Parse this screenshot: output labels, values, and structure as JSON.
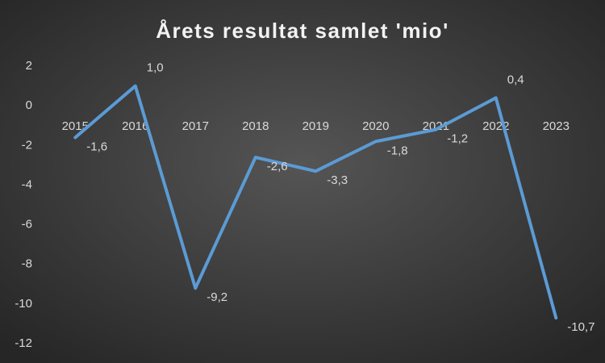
{
  "chart_data": {
    "type": "line",
    "title": "Årets resultat samlet 'mio'",
    "categories": [
      "2015",
      "2016",
      "2017",
      "2018",
      "2019",
      "2020",
      "2021",
      "2022",
      "2023"
    ],
    "values": [
      -1.6,
      1.0,
      -9.2,
      -2.6,
      -3.3,
      -1.8,
      -1.2,
      0.4,
      -10.7
    ],
    "value_labels": [
      "-1,6",
      "1,0",
      "-9,2",
      "-2,6",
      "-3,3",
      "-1,8",
      "-1,2",
      "0,4",
      "-10,7"
    ],
    "color": "#5b9bd5",
    "ylim": [
      -12,
      2
    ],
    "yticks": [
      2,
      0,
      -2,
      -4,
      -6,
      -8,
      -10,
      -12
    ]
  }
}
